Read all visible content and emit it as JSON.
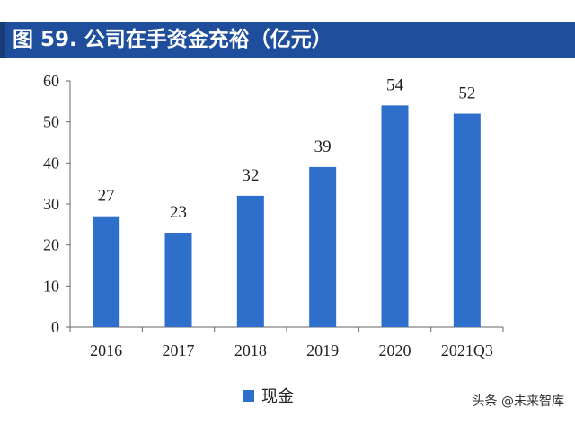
{
  "title": "图 59. 公司在手资金充裕（亿元）",
  "legend_label": "现金",
  "watermark": "头条 @未来智库",
  "colors": {
    "bar": "#2f6fcc",
    "title_bg": "#1f4e9c"
  },
  "chart_data": {
    "type": "bar",
    "categories": [
      "2016",
      "2017",
      "2018",
      "2019",
      "2020",
      "2021Q3"
    ],
    "series": [
      {
        "name": "现金",
        "values": [
          27,
          23,
          32,
          39,
          54,
          52
        ]
      }
    ],
    "ylim": [
      0,
      60
    ],
    "yticks": [
      0,
      10,
      20,
      30,
      40,
      50,
      60
    ],
    "grid": false,
    "legend": "bottom"
  }
}
